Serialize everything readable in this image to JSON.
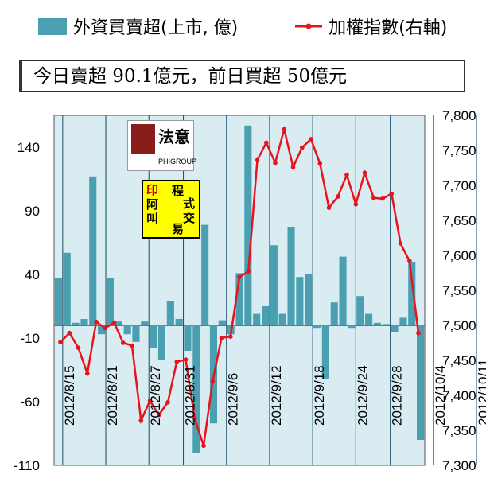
{
  "legend": {
    "bar_label": "外資買賣超(上市, 億)",
    "line_label": "加權指數(右軸)"
  },
  "callout": {
    "text": "今日賣超 90.1億元，前日買超 50億元"
  },
  "logos": {
    "phigroup_main": "法意",
    "phigroup_sub": "PHIGROUP",
    "stamp_a": "印",
    "stamp_b": "阿",
    "stamp_c": "叫",
    "text_1": "程",
    "text_2": "式",
    "text_3": "交",
    "text_4": "易"
  },
  "colors": {
    "bar": "#4a9fb0",
    "line": "#e8131b",
    "plot_bg": "#d8ecf2",
    "grid": "#1a4a66"
  },
  "chart_data": {
    "type": "bar",
    "left_axis": {
      "ylim": [
        -110,
        165
      ],
      "ticks": [
        -110,
        -60,
        -10,
        40,
        90,
        140
      ]
    },
    "right_axis": {
      "ylim": [
        7300,
        7800
      ],
      "ticks": [
        7300,
        7350,
        7400,
        7450,
        7500,
        7550,
        7600,
        7650,
        7700,
        7750,
        7800
      ]
    },
    "x_tick_labels": [
      "2012/8/15",
      "2012/8/21",
      "2012/8/27",
      "2012/8/31",
      "2012/9/6",
      "2012/9/12",
      "2012/9/18",
      "2012/9/24",
      "2012/9/28",
      "2012/10/4",
      "2012/10/11"
    ],
    "x_tick_positions": [
      1,
      6,
      11,
      15,
      20,
      25,
      30,
      35,
      39,
      44,
      49
    ],
    "series": [
      {
        "name": "外資買賣超(上市, 億)",
        "axis": "left",
        "type": "bar",
        "values": [
          37,
          57,
          2,
          5,
          117,
          -7,
          37,
          3,
          -7,
          -13,
          3,
          -18,
          -27,
          19,
          5,
          -20,
          -100,
          79,
          -77,
          4,
          -7,
          41,
          157,
          9,
          15,
          63,
          9,
          77,
          38,
          40,
          -2,
          -42,
          18,
          54,
          -2,
          23,
          9,
          2,
          1,
          -5,
          6,
          50,
          -90
        ]
      },
      {
        "name": "加權指數(右軸)",
        "axis": "right",
        "type": "line",
        "values": [
          7476,
          7489,
          7468,
          7431,
          7505,
          7496,
          7504,
          7475,
          7471,
          7364,
          7392,
          7372,
          7390,
          7448,
          7451,
          7367,
          7328,
          7420,
          7482,
          7484,
          7569,
          7577,
          7736,
          7761,
          7732,
          7780,
          7726,
          7754,
          7766,
          7731,
          7668,
          7684,
          7715,
          7673,
          7718,
          7682,
          7681,
          7688,
          7617,
          7592,
          7489
        ]
      }
    ]
  }
}
